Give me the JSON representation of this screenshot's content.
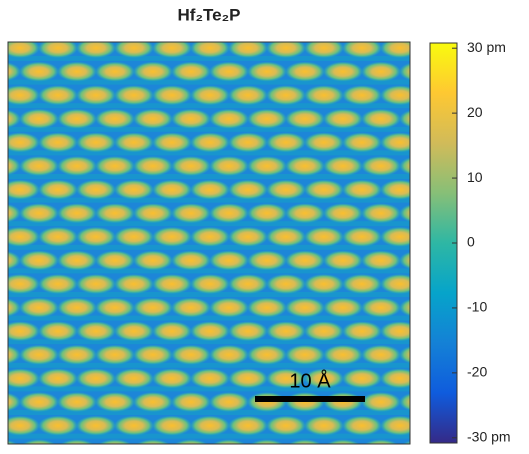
{
  "chart_data": {
    "type": "heatmap",
    "title": "Hf₂Te₂P",
    "colorbar": {
      "clim": [
        -30.8,
        30.8
      ],
      "ticks": [
        {
          "value": 30,
          "label": "30 pm"
        },
        20,
        10,
        0,
        -10,
        -20,
        {
          "value": -30,
          "label": "-30 pm"
        }
      ],
      "colors": [
        "#352a87",
        "#0f5cdd",
        "#1481d6",
        "#06a4ca",
        "#2eb7a4",
        "#87bf77",
        "#d1bb59",
        "#fec832",
        "#f9fb0e"
      ]
    },
    "scale_bar": {
      "label": "10 Å"
    }
  }
}
